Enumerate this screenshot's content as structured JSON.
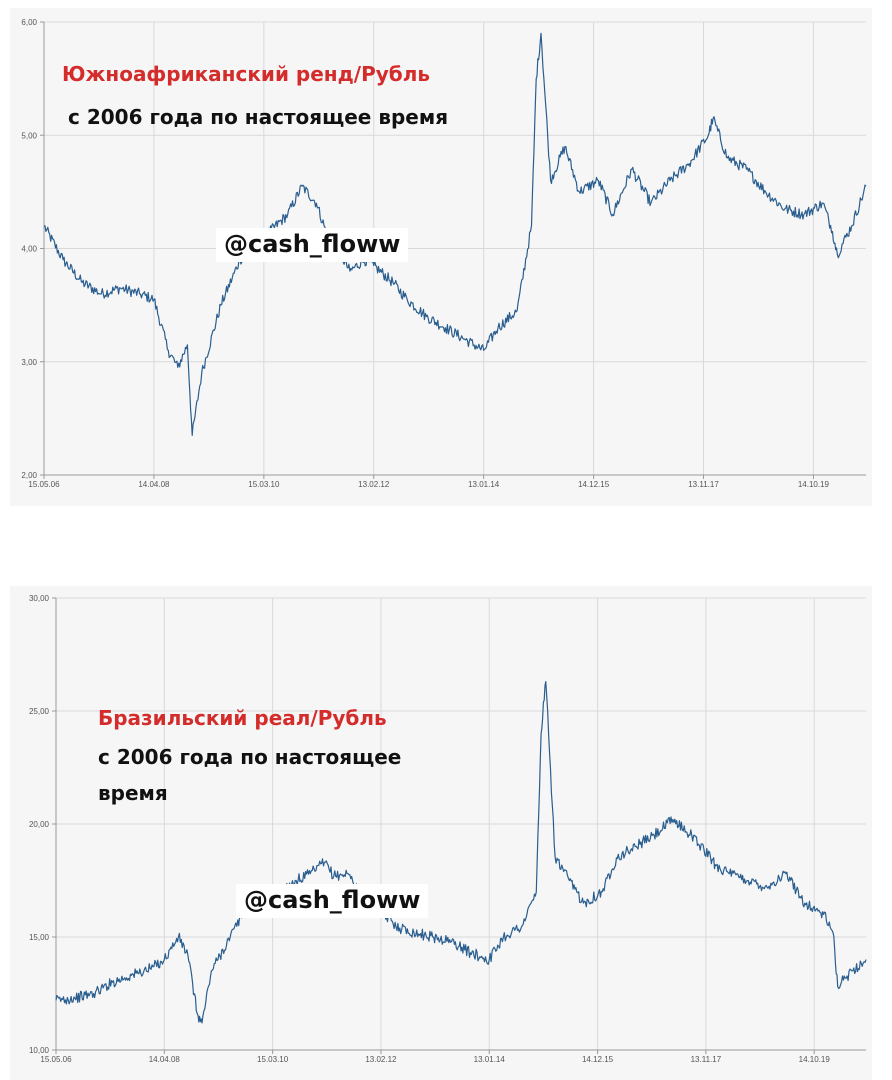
{
  "colors": {
    "line": "#2a5e8f",
    "title": "#d42b2b",
    "grid": "#d9d9d9",
    "axis": "#999999",
    "text": "#111111"
  },
  "chart_data": [
    {
      "type": "line",
      "title": "Южноафриканский ренд/Рубль",
      "subtitle": "с 2006 года по настоящее время",
      "watermark": "@cash_floww",
      "xlabel": "",
      "ylabel": "",
      "x_ticks": [
        "15.05.06",
        "14.04.08",
        "15.03.10",
        "13.02.12",
        "13.01.14",
        "14.12.15",
        "13.11.17",
        "14.10.19"
      ],
      "y_ticks": [
        "2,00",
        "3,00",
        "4,00",
        "5,00",
        "6,00"
      ],
      "ylim": [
        2.0,
        6.0
      ],
      "grid": true,
      "series": [
        {
          "x": [
            "2006-05",
            "2006-09",
            "2007-01",
            "2007-05",
            "2007-09",
            "2008-01",
            "2008-04",
            "2008-07",
            "2008-09",
            "2008-11",
            "2008-12",
            "2009-02",
            "2009-06",
            "2009-10",
            "2010-03",
            "2010-08",
            "2010-11",
            "2011-02",
            "2011-04",
            "2011-07",
            "2011-09",
            "2011-12",
            "2012-02",
            "2012-06",
            "2012-09",
            "2013-01",
            "2013-05",
            "2013-09",
            "2014-01",
            "2014-04",
            "2014-08",
            "2014-11",
            "2014-12",
            "2015-01",
            "2015-03",
            "2015-06",
            "2015-09",
            "2016-01",
            "2016-04",
            "2016-08",
            "2016-12",
            "2017-04",
            "2017-08",
            "2017-12",
            "2018-01",
            "2018-04",
            "2018-08",
            "2018-12",
            "2019-04",
            "2019-08",
            "2019-12",
            "2020-02",
            "2020-03",
            "2020-06",
            "2020-09"
          ],
          "values": [
            4.2,
            3.9,
            3.7,
            3.6,
            3.65,
            3.6,
            3.55,
            3.1,
            2.95,
            3.15,
            2.35,
            2.9,
            3.5,
            3.9,
            4.1,
            4.3,
            4.55,
            4.4,
            4.15,
            3.95,
            3.8,
            3.9,
            3.85,
            3.7,
            3.55,
            3.4,
            3.3,
            3.2,
            3.1,
            3.3,
            3.45,
            4.2,
            5.5,
            5.9,
            4.6,
            4.9,
            4.5,
            4.6,
            4.3,
            4.7,
            4.4,
            4.6,
            4.75,
            5.0,
            5.15,
            4.8,
            4.7,
            4.5,
            4.35,
            4.3,
            4.4,
            4.15,
            3.95,
            4.2,
            4.55
          ]
        }
      ]
    },
    {
      "type": "line",
      "title": "Бразильский реал/Рубль",
      "subtitle": [
        "с 2006 года по настоящее",
        "время"
      ],
      "watermark": "@cash_floww",
      "xlabel": "",
      "ylabel": "",
      "x_ticks": [
        "15.05.06",
        "14.04.08",
        "15.03.10",
        "13.02.12",
        "13.01.14",
        "14.12.15",
        "13.11.17",
        "14.10.19"
      ],
      "y_ticks": [
        "10,00",
        "15,00",
        "20,00",
        "25,00",
        "30,00"
      ],
      "ylim": [
        10.0,
        30.0
      ],
      "grid": true,
      "series": [
        {
          "x": [
            "2006-05",
            "2006-09",
            "2007-01",
            "2007-05",
            "2007-09",
            "2008-01",
            "2008-04",
            "2008-07",
            "2008-09",
            "2008-11",
            "2008-12",
            "2009-02",
            "2009-06",
            "2009-10",
            "2010-03",
            "2010-08",
            "2010-11",
            "2011-02",
            "2011-04",
            "2011-07",
            "2011-09",
            "2011-12",
            "2012-02",
            "2012-06",
            "2012-09",
            "2013-01",
            "2013-05",
            "2013-09",
            "2014-01",
            "2014-04",
            "2014-08",
            "2014-11",
            "2014-12",
            "2015-01",
            "2015-03",
            "2015-06",
            "2015-09",
            "2016-01",
            "2016-04",
            "2016-08",
            "2016-12",
            "2017-04",
            "2017-08",
            "2017-12",
            "2018-01",
            "2018-04",
            "2018-08",
            "2018-12",
            "2019-04",
            "2019-08",
            "2019-12",
            "2020-02",
            "2020-03",
            "2020-06",
            "2020-09"
          ],
          "values": [
            12.2,
            12.3,
            12.5,
            13.0,
            13.3,
            13.6,
            14.0,
            15.0,
            14.2,
            11.6,
            11.2,
            13.5,
            15.0,
            16.5,
            16.8,
            17.5,
            17.8,
            18.3,
            17.7,
            17.8,
            17.2,
            16.4,
            16.1,
            15.4,
            15.2,
            15.0,
            14.8,
            14.3,
            14.0,
            15.0,
            15.5,
            17.0,
            24.0,
            26.3,
            18.5,
            17.5,
            16.5,
            17.0,
            18.5,
            19.0,
            19.5,
            20.2,
            19.5,
            18.5,
            18.2,
            17.8,
            17.5,
            17.2,
            17.8,
            16.5,
            16.0,
            15.2,
            12.8,
            13.5,
            14.0
          ]
        }
      ]
    }
  ]
}
